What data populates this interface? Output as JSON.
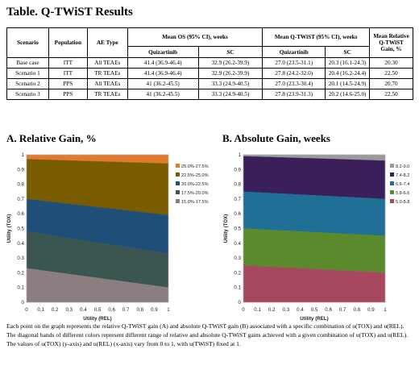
{
  "table": {
    "title": "Table. Q-TWiST Results",
    "headers": {
      "scenario": "Scenario",
      "population": "Population",
      "ae_type": "AE Type",
      "mean_os": "Mean OS (95% CI), weeks",
      "mean_qtwist": "Mean Q-TWiST (95% CI), weeks",
      "mean_rel_gain": "Mean Relative Q-TWiST Gain, %",
      "quizartinib": "Quizartinib",
      "sc": "SC"
    },
    "rows": [
      [
        "Base case",
        "ITT",
        "All TEAEs",
        "41.4 (36.9-46.4)",
        "32.9 (26.2-39.9)",
        "27.0 (23.5-31.1)",
        "20.3 (16.1-24.3)",
        "20.30"
      ],
      [
        "Scenario 1",
        "ITT",
        "TR TEAEs",
        "41.4 (36.9-46.4)",
        "32.9 (26.2-39.9)",
        "27.8 (24.2-32.0)",
        "20.4 (16.2-24.4)",
        "22.50"
      ],
      [
        "Scenario 2",
        "PPS",
        "All TEAEs",
        "41 (36.2-45.5)",
        "33.3 (24.9-40.5)",
        "27.0 (23.3-30.4)",
        "20.1 (14.5-24.9)",
        "20.70"
      ],
      [
        "Scenario 3",
        "PPS",
        "TR TEAEs",
        "41 (36.2-45.5)",
        "33.3 (24.9-40.5)",
        "27.8 (23.9-31.3)",
        "20.2 (14.6-25.0)",
        "22.50"
      ]
    ]
  },
  "section_a_title": "A. Relative Gain, %",
  "section_b_title": "B. Absolute Gain, weeks",
  "chart_data": [
    {
      "type": "area",
      "ylabel": "Utility (TOX)",
      "xlabel": "Utility (REL)",
      "xlim": [
        0,
        1
      ],
      "ylim": [
        0,
        1
      ],
      "x_ticks": [
        "0",
        "0.1",
        "0.2",
        "0.3",
        "0.4",
        "0.5",
        "0.6",
        "0.7",
        "0.8",
        "0.9",
        "1"
      ],
      "y_ticks": [
        "0",
        "0.1",
        "0.2",
        "0.3",
        "0.4",
        "0.5",
        "0.6",
        "0.7",
        "0.8",
        "0.9",
        "1"
      ],
      "legend_position": "right",
      "bands": [
        {
          "name": "25.0%-27.5%",
          "color": "#e07a2c",
          "left": [
            0.97,
            1.0
          ],
          "right": [
            0.94,
            1.0
          ]
        },
        {
          "name": "22.5%-25.0%",
          "color": "#7a5c00",
          "left": [
            0.7,
            0.97
          ],
          "right": [
            0.59,
            0.94
          ]
        },
        {
          "name": "20.0%-22.5%",
          "color": "#1f4e79",
          "left": [
            0.48,
            0.7
          ],
          "right": [
            0.33,
            0.59
          ]
        },
        {
          "name": "17.5%-20.0%",
          "color": "#3b5550",
          "left": [
            0.23,
            0.48
          ],
          "right": [
            0.1,
            0.33
          ]
        },
        {
          "name": "15.0%-17.5%",
          "color": "#8c7e80",
          "left": [
            0.0,
            0.23
          ],
          "right": [
            0.0,
            0.1
          ]
        }
      ]
    },
    {
      "type": "area",
      "ylabel": "Utility (TOX)",
      "xlabel": "Utility (REL)",
      "xlim": [
        0,
        1
      ],
      "ylim": [
        0,
        1
      ],
      "x_ticks": [
        "0",
        "0.1",
        "0.2",
        "0.3",
        "0.4",
        "0.5",
        "0.6",
        "0.7",
        "0.8",
        "0.9",
        "1"
      ],
      "y_ticks": [
        "0",
        "0.1",
        "0.2",
        "0.3",
        "0.4",
        "0.5",
        "0.6",
        "0.7",
        "0.8",
        "0.9",
        "1"
      ],
      "legend_position": "right",
      "bands": [
        {
          "name": "8.2-9.0",
          "color": "#9a9a9a",
          "left": [
            0.99,
            1.0
          ],
          "right": [
            0.96,
            1.0
          ]
        },
        {
          "name": "7.4-8.2",
          "color": "#3a1f5a",
          "left": [
            0.75,
            0.99
          ],
          "right": [
            0.7,
            0.96
          ]
        },
        {
          "name": "6.6-7.4",
          "color": "#1f6f96",
          "left": [
            0.5,
            0.75
          ],
          "right": [
            0.45,
            0.7
          ]
        },
        {
          "name": "5.8-6.6",
          "color": "#5b8a2c",
          "left": [
            0.25,
            0.5
          ],
          "right": [
            0.2,
            0.45
          ]
        },
        {
          "name": "5.0-5.8",
          "color": "#a8485e",
          "left": [
            0.0,
            0.25
          ],
          "right": [
            0.0,
            0.2
          ]
        }
      ]
    }
  ],
  "caption": "Each point on the graph represents the relative Q-TWiST gain (A) and absolute Q-TWiST gain (B) associated with a specific combination of u(TOX) and u(REL). The diagonal bands of different colors represent different range of relative and absolute Q-TWiST gains achieved with a given combination of u(TOX) and u(REL). The values of u(TOX) (y-axis) and u(REL) (x-axis) vary from 0 to 1, with u(TWiST) fixed at 1."
}
